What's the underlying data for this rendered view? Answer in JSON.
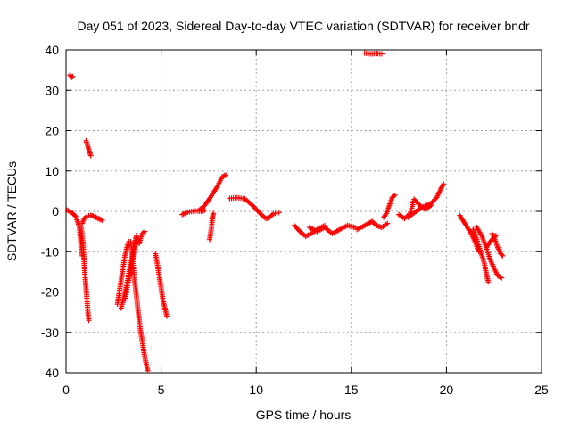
{
  "chart_data": {
    "type": "scatter",
    "title": "Day 051 of 2023, Sidereal Day-to-day VTEC variation (SDTVAR) for receiver bndr",
    "xlabel": "GPS time / hours",
    "ylabel": "SDTVAR / TECUs",
    "xlim": [
      0,
      25
    ],
    "ylim": [
      -40,
      40
    ],
    "xticks": [
      0,
      5,
      10,
      15,
      20,
      25
    ],
    "yticks": [
      -40,
      -30,
      -20,
      -10,
      0,
      10,
      20,
      30,
      40
    ],
    "grid": true,
    "marker": "+",
    "color": "#ff0000",
    "segments": [
      [
        [
          0.2,
          33.8
        ],
        [
          0.25,
          33.5
        ],
        [
          0.3,
          33.2
        ],
        [
          0.35,
          33.4
        ]
      ],
      [
        [
          0.05,
          0.3
        ],
        [
          0.2,
          0.0
        ],
        [
          0.35,
          -0.5
        ],
        [
          0.5,
          -1.2
        ],
        [
          0.6,
          -2.5
        ],
        [
          0.7,
          -4
        ],
        [
          0.75,
          -6
        ],
        [
          0.8,
          -9
        ],
        [
          0.85,
          -11
        ]
      ],
      [
        [
          0.8,
          -4
        ],
        [
          0.9,
          -8
        ],
        [
          0.95,
          -12
        ],
        [
          1.0,
          -16
        ],
        [
          1.05,
          -19
        ],
        [
          1.1,
          -22
        ],
        [
          1.15,
          -25
        ],
        [
          1.2,
          -27
        ]
      ],
      [
        [
          0.85,
          -3
        ],
        [
          0.95,
          -1.8
        ],
        [
          1.1,
          -1.2
        ],
        [
          1.3,
          -1.0
        ],
        [
          1.5,
          -1.3
        ],
        [
          1.7,
          -1.8
        ],
        [
          1.9,
          -2.2
        ]
      ],
      [
        [
          1.05,
          17.5
        ],
        [
          1.15,
          16
        ],
        [
          1.25,
          14.5
        ],
        [
          1.3,
          13.8
        ]
      ],
      [
        [
          2.7,
          -23
        ],
        [
          2.8,
          -20
        ],
        [
          2.9,
          -17
        ],
        [
          3.0,
          -14
        ],
        [
          3.1,
          -11
        ],
        [
          3.2,
          -9
        ],
        [
          3.3,
          -7.5
        ]
      ],
      [
        [
          2.9,
          -24
        ],
        [
          3.05,
          -21
        ],
        [
          3.2,
          -18
        ],
        [
          3.35,
          -14
        ],
        [
          3.5,
          -11
        ],
        [
          3.6,
          -8
        ],
        [
          3.7,
          -6
        ]
      ],
      [
        [
          3.1,
          -22
        ],
        [
          3.25,
          -18
        ],
        [
          3.4,
          -15
        ],
        [
          3.5,
          -12
        ],
        [
          3.6,
          -9
        ],
        [
          3.75,
          -7
        ]
      ],
      [
        [
          3.4,
          -7.5
        ],
        [
          3.5,
          -12
        ],
        [
          3.6,
          -17
        ],
        [
          3.7,
          -21
        ],
        [
          3.8,
          -25
        ],
        [
          3.9,
          -29
        ],
        [
          4.0,
          -32
        ],
        [
          4.1,
          -35
        ],
        [
          4.2,
          -37.5
        ],
        [
          4.3,
          -39.5
        ]
      ],
      [
        [
          3.7,
          -6.5
        ],
        [
          3.85,
          -8
        ],
        [
          4.0,
          -5.5
        ],
        [
          4.15,
          -5
        ]
      ],
      [
        [
          4.7,
          -10.5
        ],
        [
          4.8,
          -13
        ],
        [
          4.9,
          -16
        ],
        [
          5.0,
          -19
        ],
        [
          5.1,
          -22
        ],
        [
          5.2,
          -24
        ],
        [
          5.3,
          -26
        ]
      ],
      [
        [
          6.1,
          -0.8
        ],
        [
          6.4,
          -0.2
        ],
        [
          6.8,
          0.1
        ],
        [
          7.1,
          0.0
        ],
        [
          7.3,
          0.3
        ]
      ],
      [
        [
          7.0,
          0.3
        ],
        [
          7.3,
          1.5
        ],
        [
          7.6,
          3.5
        ],
        [
          7.8,
          5
        ],
        [
          8.0,
          6.5
        ],
        [
          8.2,
          8.5
        ],
        [
          8.4,
          9
        ]
      ],
      [
        [
          7.55,
          -7
        ],
        [
          7.65,
          -4
        ],
        [
          7.7,
          -1.5
        ],
        [
          7.75,
          -0.5
        ]
      ],
      [
        [
          8.6,
          3.2
        ],
        [
          9.0,
          3.4
        ],
        [
          9.4,
          3.1
        ],
        [
          9.8,
          1.5
        ],
        [
          10.2,
          -0.5
        ],
        [
          10.5,
          -1.8
        ],
        [
          10.7,
          -1.5
        ],
        [
          10.9,
          -0.6
        ],
        [
          11.2,
          -0.3
        ]
      ],
      [
        [
          12.0,
          -3.5
        ],
        [
          12.3,
          -5
        ],
        [
          12.6,
          -6.2
        ],
        [
          12.9,
          -5.5
        ],
        [
          13.2,
          -4.5
        ],
        [
          13.6,
          -3.5
        ]
      ],
      [
        [
          12.8,
          -4
        ],
        [
          13.2,
          -5
        ],
        [
          13.6,
          -4
        ],
        [
          14.0,
          -5.5
        ],
        [
          14.4,
          -4.5
        ],
        [
          14.8,
          -3.5
        ],
        [
          15.2,
          -4
        ]
      ],
      [
        [
          15.3,
          -4.5
        ],
        [
          15.6,
          -3.8
        ],
        [
          15.9,
          -3
        ],
        [
          16.1,
          -2.5
        ],
        [
          16.3,
          -3.5
        ],
        [
          16.6,
          -4
        ],
        [
          16.9,
          -3
        ]
      ],
      [
        [
          15.7,
          39.2
        ],
        [
          16.0,
          39.0
        ],
        [
          16.3,
          39.1
        ],
        [
          16.6,
          39.0
        ]
      ],
      [
        [
          16.7,
          -1.5
        ],
        [
          16.85,
          -0.5
        ],
        [
          17.0,
          1.5
        ],
        [
          17.15,
          3.5
        ],
        [
          17.3,
          4
        ]
      ],
      [
        [
          17.5,
          -0.8
        ],
        [
          17.8,
          -1.8
        ],
        [
          18.1,
          -0.5
        ],
        [
          18.3,
          3
        ],
        [
          18.6,
          1.5
        ],
        [
          18.9,
          0.5
        ],
        [
          19.2,
          1.5
        ]
      ],
      [
        [
          18.0,
          -1.5
        ],
        [
          18.4,
          0.0
        ],
        [
          18.8,
          1.2
        ],
        [
          19.2,
          2
        ],
        [
          19.5,
          3.5
        ],
        [
          19.7,
          5.5
        ],
        [
          19.85,
          6.8
        ]
      ],
      [
        [
          20.7,
          -1
        ],
        [
          20.9,
          -2.5
        ],
        [
          21.1,
          -4
        ],
        [
          21.3,
          -5.5
        ],
        [
          21.5,
          -7.5
        ],
        [
          21.7,
          -10
        ]
      ],
      [
        [
          21.4,
          -4.5
        ],
        [
          21.6,
          -7
        ],
        [
          21.8,
          -10
        ],
        [
          22.0,
          -13
        ],
        [
          22.1,
          -15.5
        ],
        [
          22.2,
          -17.5
        ]
      ],
      [
        [
          21.6,
          -4
        ],
        [
          21.85,
          -6
        ],
        [
          22.1,
          -9
        ],
        [
          22.3,
          -12
        ],
        [
          22.5,
          -14
        ],
        [
          22.7,
          -16
        ],
        [
          22.9,
          -16.5
        ]
      ],
      [
        [
          22.1,
          -9
        ],
        [
          22.3,
          -7.5
        ],
        [
          22.5,
          -6.5
        ],
        [
          22.6,
          -6
        ]
      ],
      [
        [
          22.4,
          -5.5
        ],
        [
          22.55,
          -7
        ],
        [
          22.7,
          -9
        ],
        [
          22.85,
          -10.5
        ],
        [
          22.95,
          -11
        ]
      ]
    ]
  }
}
